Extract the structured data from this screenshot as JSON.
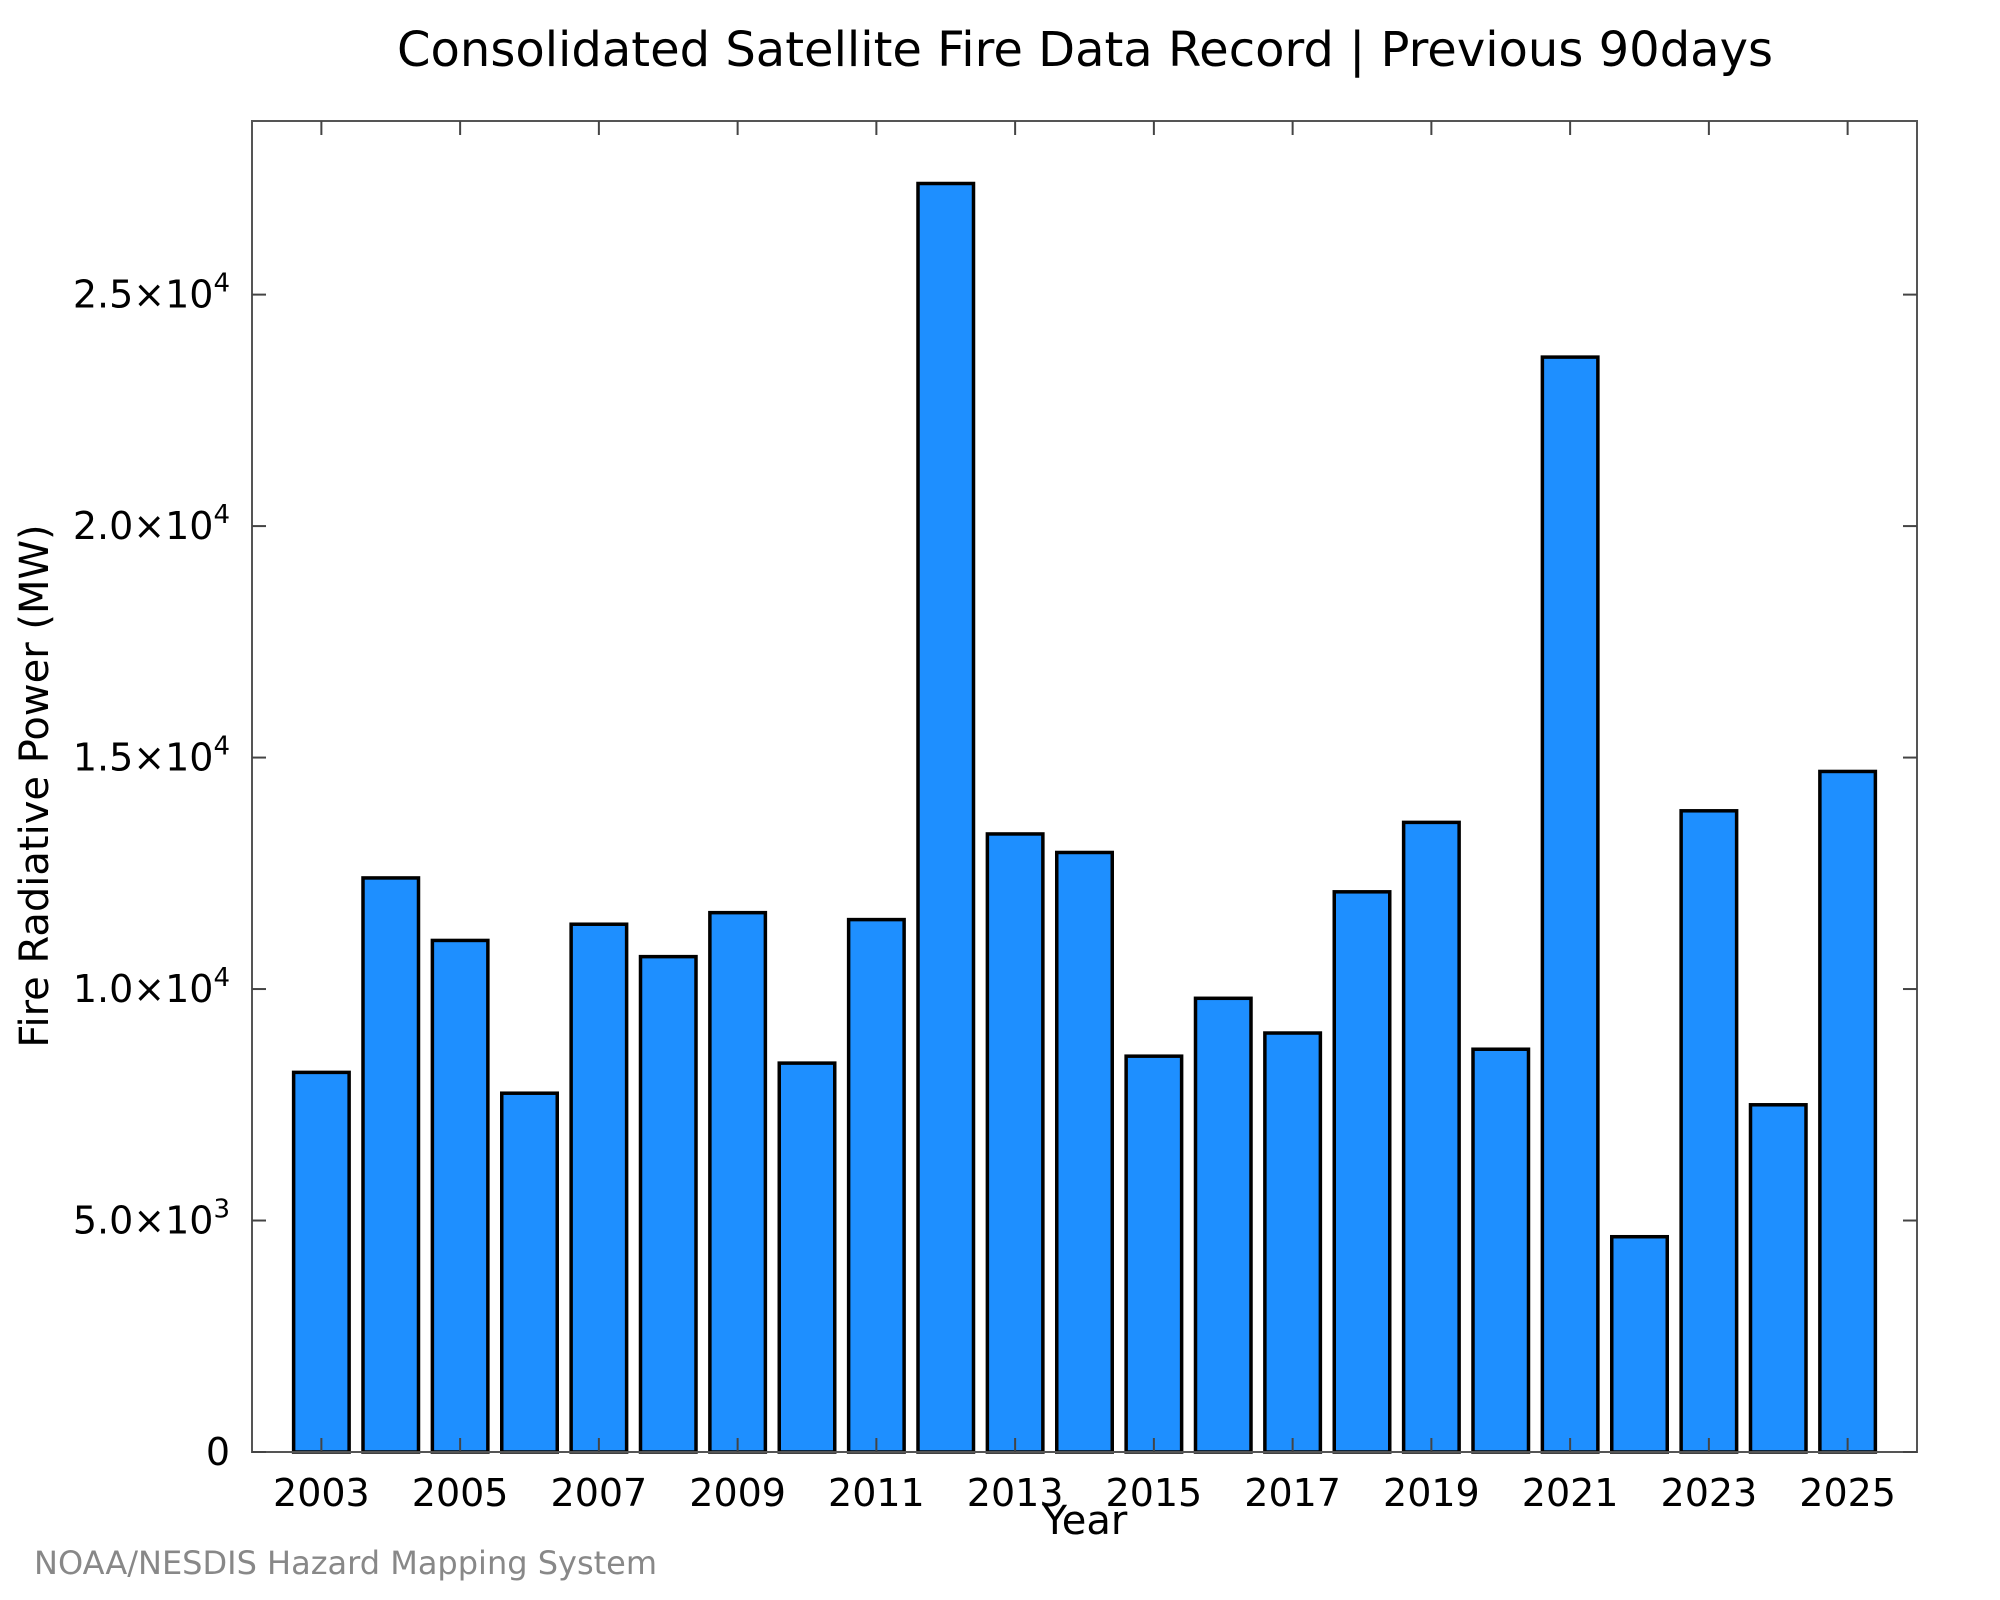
{
  "chart_data": {
    "type": "bar",
    "title": "Consolidated Satellite Fire Data Record | Previous 90days",
    "xlabel": "Year",
    "ylabel": "Fire Radiative Power (MW)",
    "source": "NOAA/NESDIS Hazard Mapping System",
    "categories": [
      "2003",
      "2004",
      "2005",
      "2006",
      "2007",
      "2008",
      "2009",
      "2010",
      "2011",
      "2012",
      "2013",
      "2014",
      "2015",
      "2016",
      "2017",
      "2018",
      "2019",
      "2020",
      "2021",
      "2022",
      "2023",
      "2024",
      "2025"
    ],
    "values": [
      8200,
      12400,
      11050,
      7750,
      11400,
      10700,
      11650,
      8400,
      11500,
      27400,
      13350,
      12950,
      8550,
      9800,
      9050,
      12100,
      13600,
      8700,
      23650,
      4650,
      13850,
      7500,
      14700
    ],
    "xlim": [
      2002.0,
      2026.0
    ],
    "ylim": [
      0,
      28750
    ],
    "x_ticks": [
      2003,
      2005,
      2007,
      2009,
      2011,
      2013,
      2015,
      2017,
      2019,
      2021,
      2023,
      2025
    ],
    "y_ticks": [
      {
        "value": 0,
        "mantissa": "0",
        "exponent": ""
      },
      {
        "value": 5000,
        "mantissa": "5.0×10",
        "exponent": "3"
      },
      {
        "value": 10000,
        "mantissa": "1.0×10",
        "exponent": "4"
      },
      {
        "value": 15000,
        "mantissa": "1.5×10",
        "exponent": "4"
      },
      {
        "value": 20000,
        "mantissa": "2.0×10",
        "exponent": "4"
      },
      {
        "value": 25000,
        "mantissa": "2.5×10",
        "exponent": "4"
      }
    ],
    "bar_color": "#1e8fff",
    "grid": false,
    "legend": "none"
  }
}
